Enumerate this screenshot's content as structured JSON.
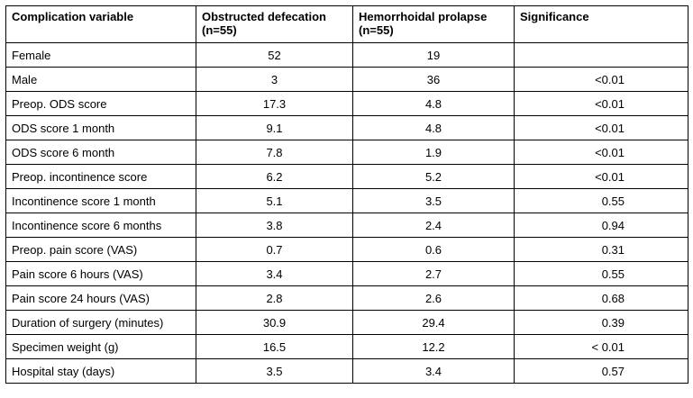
{
  "table": {
    "headers": [
      "Complication variable",
      "Obstructed defecation (n=55)",
      "Hemorrhoidal prolapse (n=55)",
      "Significance"
    ],
    "rows": [
      [
        "Female",
        "52",
        "19",
        ""
      ],
      [
        "Male",
        "3",
        "36",
        "<0.01"
      ],
      [
        "Preop. ODS score",
        "17.3",
        "4.8",
        "<0.01"
      ],
      [
        "ODS score 1 month",
        "9.1",
        "4.8",
        "<0.01"
      ],
      [
        "ODS score 6 month",
        "7.8",
        "1.9",
        "<0.01"
      ],
      [
        "Preop. incontinence score",
        "6.2",
        "5.2",
        "<0.01"
      ],
      [
        "Incontinence score 1 month",
        "5.1",
        "3.5",
        "0.55"
      ],
      [
        "Incontinence score 6 months",
        "3.8",
        "2.4",
        "0.94"
      ],
      [
        "Preop. pain score (VAS)",
        "0.7",
        "0.6",
        "0.31"
      ],
      [
        "Pain score 6 hours (VAS)",
        "3.4",
        "2.7",
        "0.55"
      ],
      [
        "Pain score 24 hours (VAS)",
        "2.8",
        "2.6",
        "0.68"
      ],
      [
        "Duration of surgery (minutes)",
        "30.9",
        "29.4",
        "0.39"
      ],
      [
        "Specimen weight (g)",
        "16.5",
        "12.2",
        "< 0.01"
      ],
      [
        "Hospital stay (days)",
        "3.5",
        "3.4",
        "0.57"
      ]
    ]
  }
}
